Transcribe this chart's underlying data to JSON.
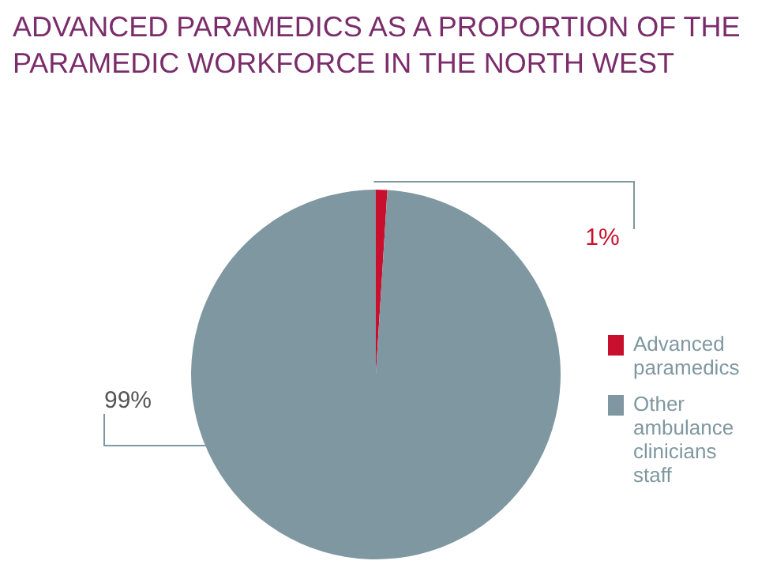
{
  "chart_data": {
    "type": "pie",
    "title": "ADVANCED PARAMEDICS AS A PROPORTION OF THE PARAMEDIC WORKFORCE IN THE NORTH WEST",
    "categories": [
      "Advanced paramedics",
      "Other ambulance clinicians staff"
    ],
    "values": [
      1,
      99
    ],
    "value_labels": [
      "1%",
      "99%"
    ],
    "colors": [
      "#c8102e",
      "#7f97a0"
    ],
    "legend": "right"
  }
}
